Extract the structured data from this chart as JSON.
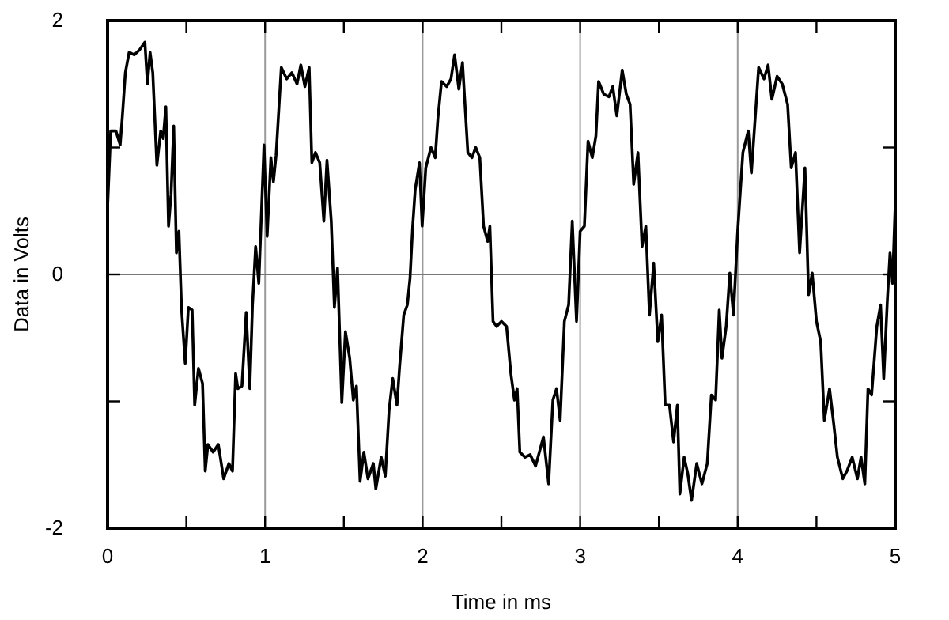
{
  "chart_data": {
    "type": "line",
    "xlabel": "Time in ms",
    "ylabel": "Data in Volts",
    "xlim": [
      0,
      5
    ],
    "ylim": [
      -2,
      2
    ],
    "xticks": [
      0,
      {
        "value": 0.5,
        "label": null
      },
      1,
      {
        "value": 1.5,
        "label": null
      },
      2,
      {
        "value": 2.5,
        "label": null
      },
      3,
      {
        "value": 3.5,
        "label": null
      },
      4,
      {
        "value": 4.5,
        "label": null
      },
      5
    ],
    "yticks": [
      -2,
      {
        "value": -1,
        "label": null
      },
      0,
      {
        "value": 1,
        "label": null
      },
      2
    ],
    "grid": true,
    "marker": "none",
    "line_style": "solid",
    "series": [
      {
        "color": "#000000",
        "x": [
          0,
          0.02,
          0.053,
          0.08,
          0.093,
          0.113,
          0.137,
          0.17,
          0.203,
          0.237,
          0.253,
          0.27,
          0.287,
          0.313,
          0.337,
          0.353,
          0.37,
          0.387,
          0.403,
          0.42,
          0.437,
          0.453,
          0.47,
          0.493,
          0.513,
          0.537,
          0.553,
          0.577,
          0.603,
          0.62,
          0.637,
          0.67,
          0.703,
          0.737,
          0.77,
          0.793,
          0.813,
          0.827,
          0.853,
          0.88,
          0.903,
          0.92,
          0.94,
          0.96,
          0.993,
          1.013,
          1.037,
          1.053,
          1.07,
          1.103,
          1.137,
          1.17,
          1.203,
          1.227,
          1.253,
          1.28,
          1.297,
          1.32,
          1.347,
          1.373,
          1.393,
          1.42,
          1.44,
          1.46,
          1.487,
          1.51,
          1.537,
          1.56,
          1.58,
          1.603,
          1.627,
          1.653,
          1.687,
          1.703,
          1.737,
          1.763,
          1.787,
          1.81,
          1.837,
          1.853,
          1.88,
          1.903,
          1.92,
          1.937,
          1.953,
          1.98,
          1.997,
          2.02,
          2.053,
          2.08,
          2.097,
          2.12,
          2.153,
          2.18,
          2.203,
          2.23,
          2.253,
          2.287,
          2.313,
          2.337,
          2.363,
          2.387,
          2.413,
          2.427,
          2.447,
          2.47,
          2.5,
          2.533,
          2.56,
          2.583,
          2.6,
          2.617,
          2.65,
          2.683,
          2.717,
          2.767,
          2.8,
          2.827,
          2.85,
          2.873,
          2.9,
          2.927,
          2.95,
          2.977,
          3.0,
          3.027,
          3.05,
          3.077,
          3.1,
          3.117,
          3.15,
          3.183,
          3.207,
          3.233,
          3.267,
          3.293,
          3.317,
          3.34,
          3.367,
          3.393,
          3.417,
          3.44,
          3.467,
          3.493,
          3.517,
          3.54,
          3.567,
          3.593,
          3.617,
          3.633,
          3.66,
          3.683,
          3.707,
          3.74,
          3.773,
          3.807,
          3.833,
          3.86,
          3.883,
          3.9,
          3.927,
          3.95,
          3.973,
          4.0,
          4.033,
          4.067,
          4.087,
          4.117,
          4.133,
          4.167,
          4.193,
          4.217,
          4.25,
          4.283,
          4.317,
          4.34,
          4.367,
          4.393,
          4.427,
          4.45,
          4.473,
          4.5,
          4.527,
          4.55,
          4.583,
          4.607,
          4.633,
          4.667,
          4.693,
          4.727,
          4.76,
          4.783,
          4.807,
          4.827,
          4.85,
          4.883,
          4.907,
          4.927,
          4.95,
          4.967,
          4.983,
          5.0
        ],
        "values": [
          0.53,
          1.13,
          1.13,
          1.02,
          1.23,
          1.59,
          1.75,
          1.73,
          1.77,
          1.83,
          1.5,
          1.75,
          1.59,
          0.86,
          1.13,
          1.07,
          1.32,
          0.38,
          0.63,
          1.17,
          0.17,
          0.34,
          -0.28,
          -0.7,
          -0.26,
          -0.28,
          -1.03,
          -0.74,
          -0.86,
          -1.55,
          -1.34,
          -1.4,
          -1.34,
          -1.61,
          -1.49,
          -1.55,
          -0.78,
          -0.9,
          -0.88,
          -0.3,
          -0.9,
          -0.24,
          0.22,
          -0.07,
          1.02,
          0.3,
          0.92,
          0.73,
          0.94,
          1.63,
          1.54,
          1.59,
          1.5,
          1.65,
          1.48,
          1.63,
          0.88,
          0.96,
          0.88,
          0.42,
          0.9,
          0.42,
          -0.26,
          0.05,
          -1.01,
          -0.45,
          -0.66,
          -0.99,
          -0.88,
          -1.63,
          -1.4,
          -1.61,
          -1.49,
          -1.69,
          -1.44,
          -1.59,
          -1.07,
          -0.82,
          -1.03,
          -0.74,
          -0.32,
          -0.24,
          -0.03,
          0.38,
          0.67,
          0.88,
          0.38,
          0.84,
          1.0,
          0.92,
          1.23,
          1.52,
          1.48,
          1.54,
          1.73,
          1.46,
          1.67,
          0.96,
          0.92,
          1.0,
          0.92,
          0.38,
          0.26,
          0.38,
          -0.37,
          -0.41,
          -0.37,
          -0.41,
          -0.78,
          -0.99,
          -0.9,
          -1.4,
          -1.44,
          -1.42,
          -1.51,
          -1.28,
          -1.65,
          -0.99,
          -0.9,
          -1.15,
          -0.37,
          -0.24,
          0.42,
          -0.37,
          0.34,
          0.38,
          1.05,
          0.92,
          1.09,
          1.52,
          1.42,
          1.4,
          1.48,
          1.25,
          1.61,
          1.42,
          1.34,
          0.71,
          0.96,
          0.22,
          0.38,
          -0.32,
          0.09,
          -0.53,
          -0.32,
          -1.03,
          -1.03,
          -1.32,
          -1.03,
          -1.73,
          -1.44,
          -1.57,
          -1.78,
          -1.49,
          -1.65,
          -1.49,
          -0.95,
          -0.99,
          -0.28,
          -0.66,
          -0.41,
          0.01,
          -0.32,
          0.34,
          0.96,
          1.13,
          0.8,
          1.34,
          1.63,
          1.54,
          1.65,
          1.38,
          1.56,
          1.5,
          1.34,
          0.84,
          0.96,
          0.17,
          0.84,
          -0.16,
          0.01,
          -0.37,
          -0.53,
          -1.15,
          -0.9,
          -1.15,
          -1.44,
          -1.61,
          -1.55,
          -1.44,
          -1.61,
          -1.44,
          -1.65,
          -0.9,
          -0.95,
          -0.41,
          -0.24,
          -0.82,
          -0.2,
          0.17,
          -0.07,
          0.55
        ]
      }
    ]
  }
}
